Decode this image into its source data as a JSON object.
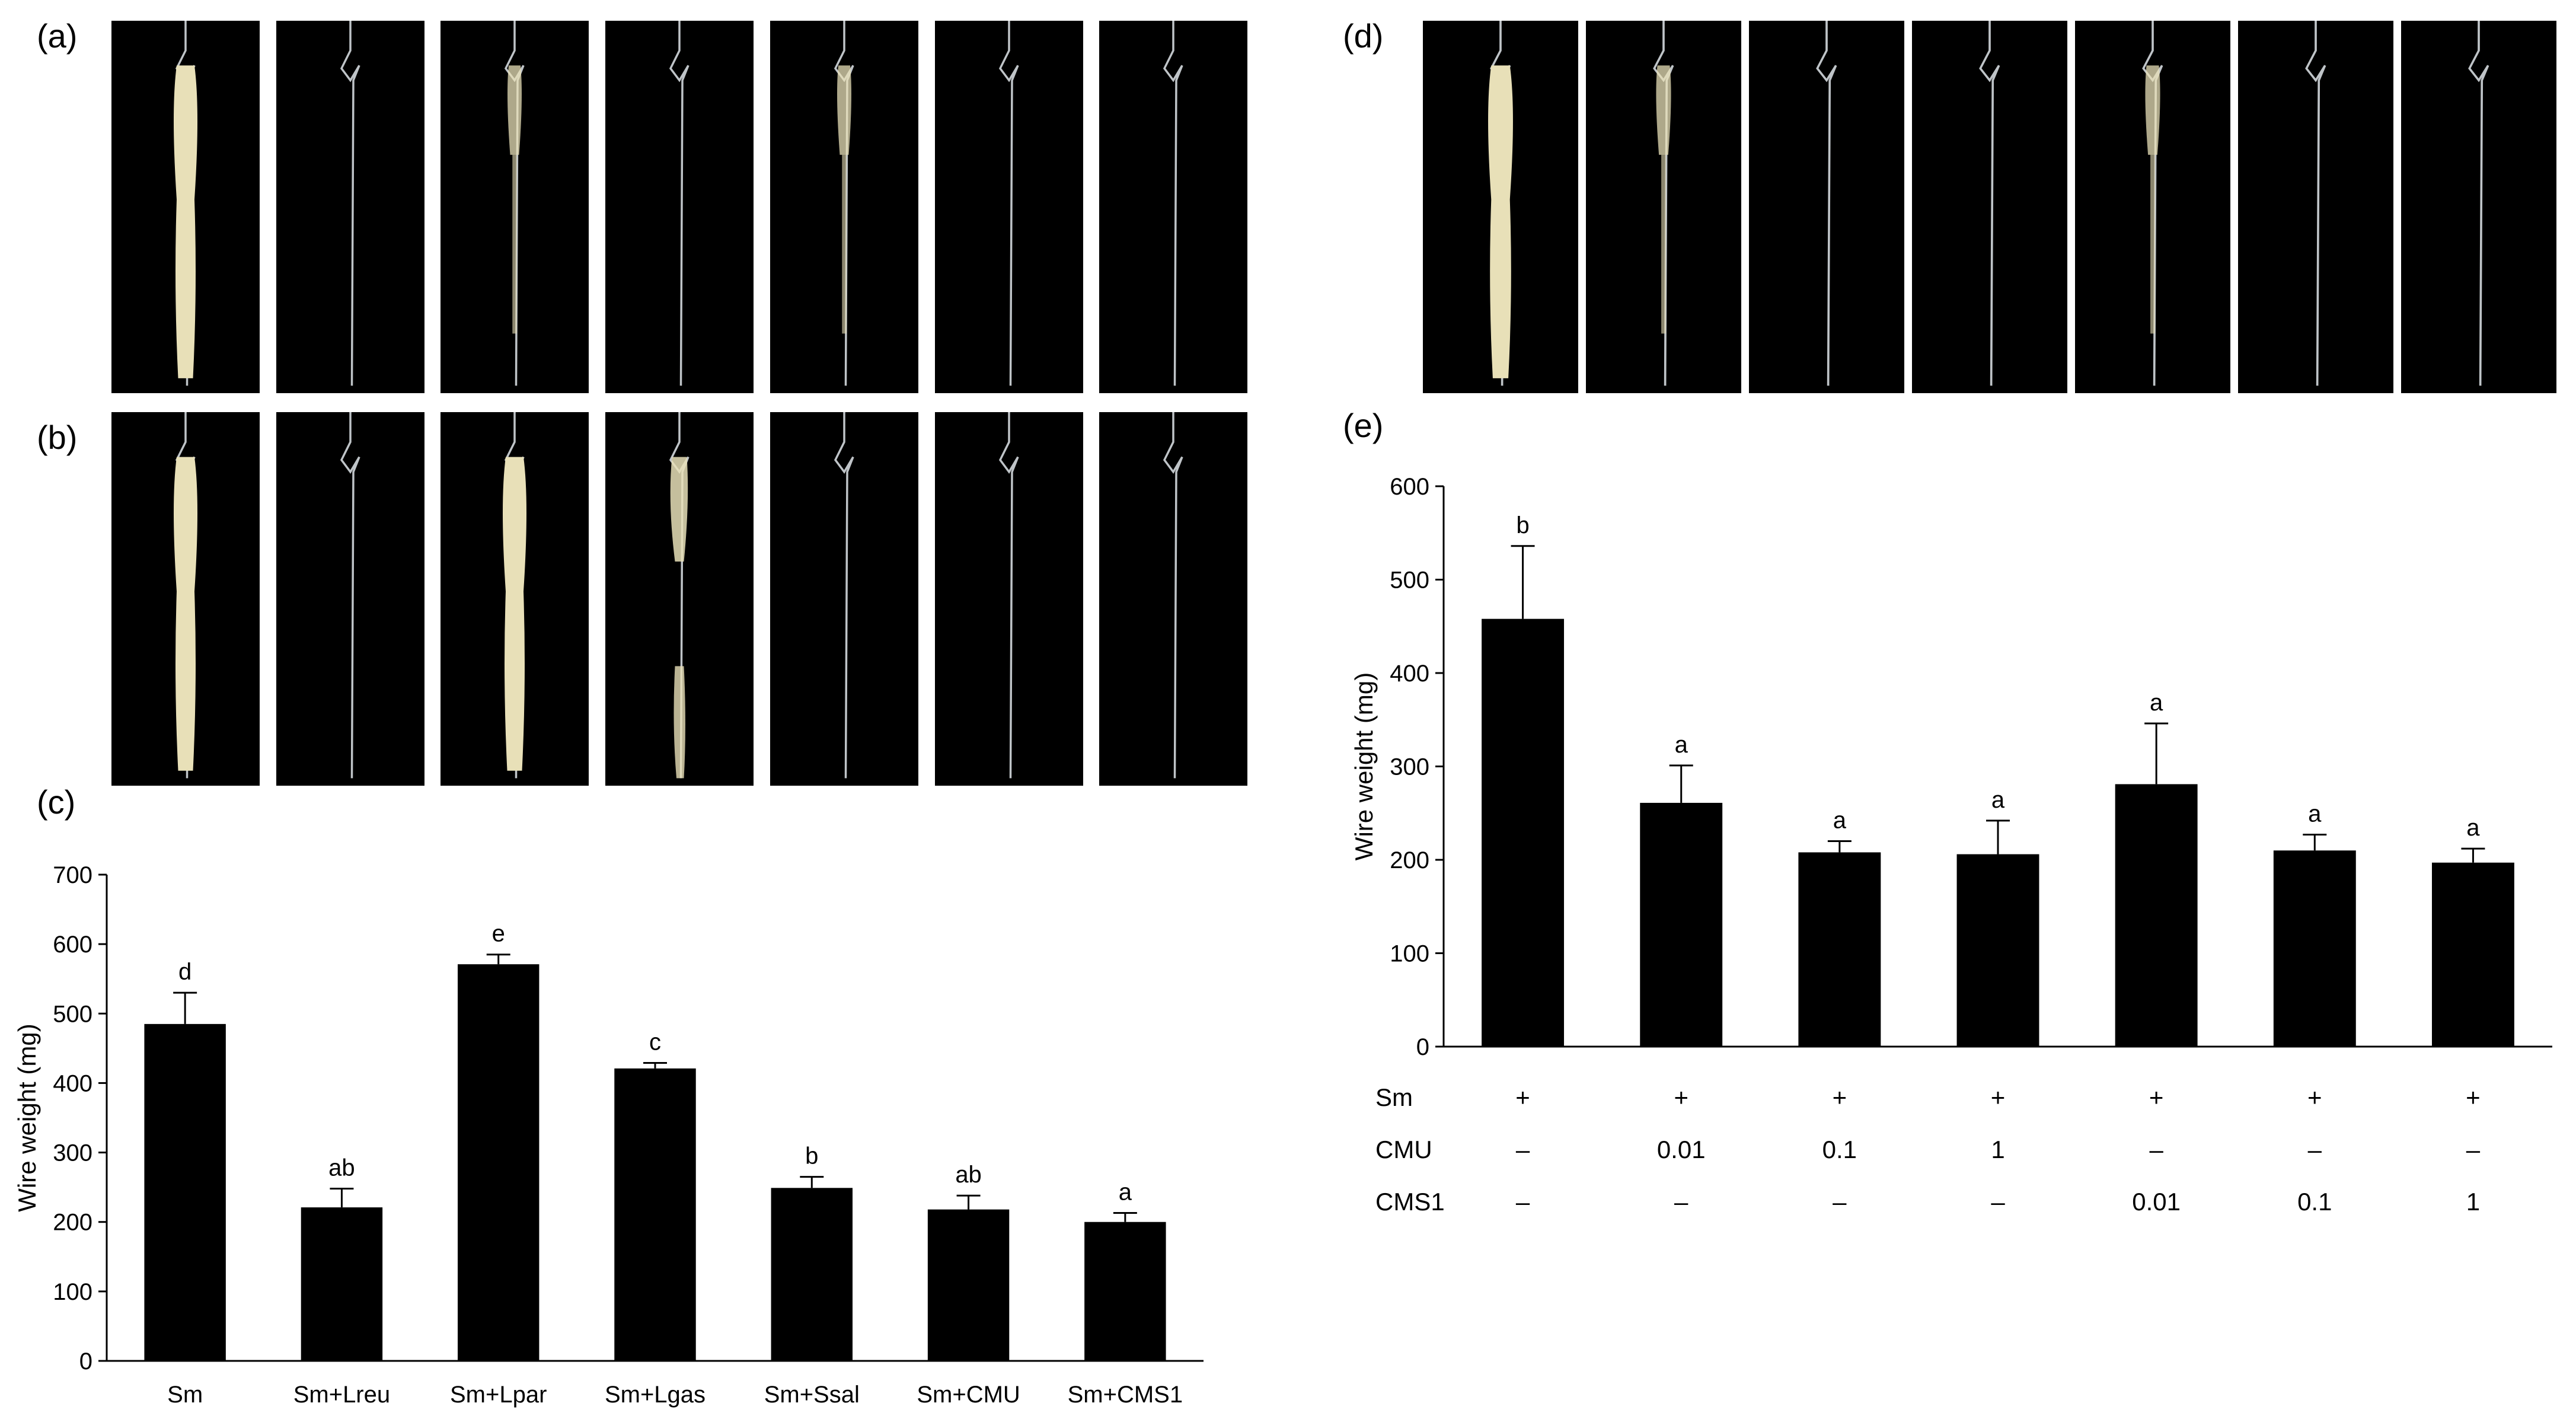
{
  "panel_labels": {
    "a": "(a)",
    "b": "(b)",
    "c": "(c)",
    "d": "(d)",
    "e": "(e)"
  },
  "photo_rows": {
    "a": [
      "clot",
      "wire",
      "small",
      "wire",
      "small",
      "wire",
      "wire"
    ],
    "b": [
      "clot",
      "wire",
      "clot",
      "mid",
      "wire",
      "wire",
      "wire"
    ],
    "d": [
      "clot",
      "small",
      "wire",
      "wire",
      "small",
      "wire",
      "wire"
    ]
  },
  "colors": {
    "bar": "#000000",
    "photo_bg": "#000000",
    "clot": "#e8e0b8",
    "wire": "#bfc4c8"
  },
  "chart_data": [
    {
      "type": "bar",
      "panel": "c",
      "categories": [
        "Sm",
        "Sm+Lreu",
        "Sm+Lpar",
        "Sm+Lgas",
        "Sm+Ssal",
        "Sm+CMU",
        "Sm+CMS1"
      ],
      "values": [
        485,
        221,
        571,
        421,
        249,
        218,
        200
      ],
      "errors": [
        45,
        27,
        14,
        8,
        16,
        20,
        13
      ],
      "significance": [
        "d",
        "ab",
        "e",
        "c",
        "b",
        "ab",
        "a"
      ],
      "ylabel": "Wire weight (mg)",
      "ylim": [
        0,
        700
      ],
      "yticks": [
        0,
        100,
        200,
        300,
        400,
        500,
        600,
        700
      ],
      "grid": false
    },
    {
      "type": "bar",
      "panel": "e",
      "categories": [
        "",
        "",
        "",
        "",
        "",
        "",
        ""
      ],
      "values": [
        458,
        261,
        208,
        206,
        281,
        210,
        197
      ],
      "errors": [
        78,
        40,
        12,
        36,
        65,
        17,
        15
      ],
      "significance": [
        "b",
        "a",
        "a",
        "a",
        "a",
        "a",
        "a"
      ],
      "ylabel": "Wire weight (mg)",
      "ylim": [
        0,
        600
      ],
      "yticks": [
        0,
        100,
        200,
        300,
        400,
        500,
        600
      ],
      "grid": false,
      "treatment_table": [
        {
          "label": "Sm",
          "values": [
            "+",
            "+",
            "+",
            "+",
            "+",
            "+",
            "+"
          ]
        },
        {
          "label": "CMU",
          "values": [
            "–",
            "0.01",
            "0.1",
            "1",
            "–",
            "–",
            "–"
          ]
        },
        {
          "label": "CMS1",
          "values": [
            "–",
            "–",
            "–",
            "–",
            "0.01",
            "0.1",
            "1"
          ]
        }
      ]
    }
  ]
}
